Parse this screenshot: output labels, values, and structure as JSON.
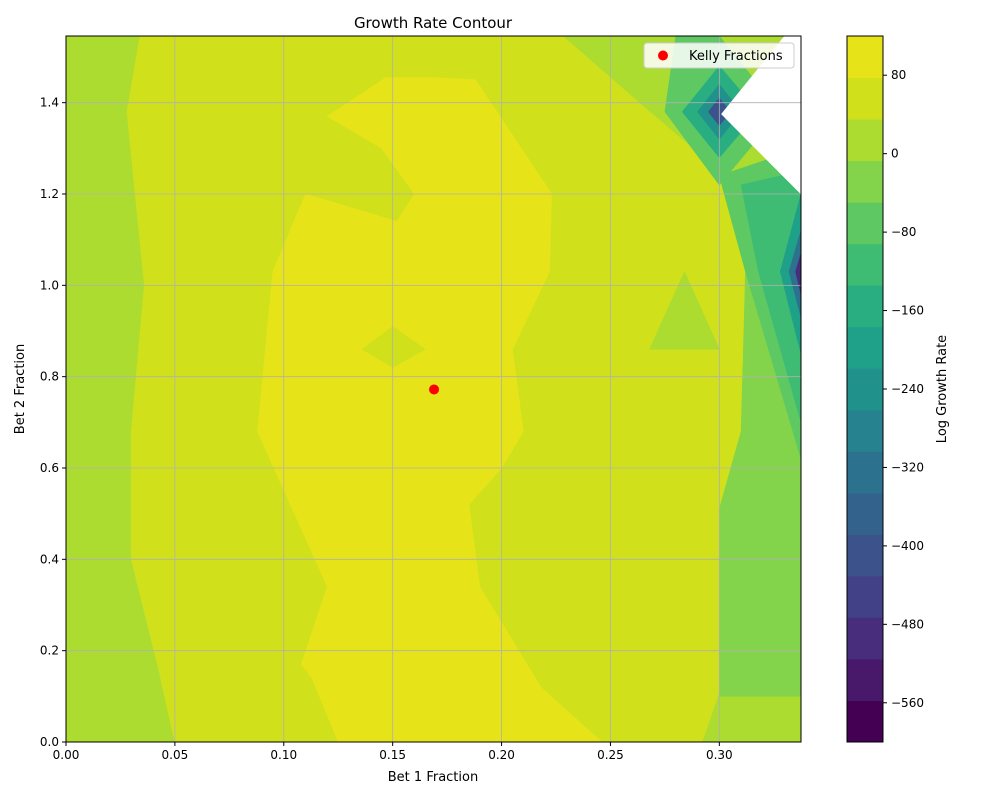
{
  "chart_data": {
    "type": "contour",
    "title": "Growth Rate Contour",
    "xlabel": "Bet 1 Fraction",
    "ylabel": "Bet 2 Fraction",
    "xlim": [
      0,
      0.3375
    ],
    "ylim": [
      0,
      1.546
    ],
    "x_ticks": [
      0.0,
      0.05,
      0.1,
      0.15,
      0.2,
      0.25,
      0.3
    ],
    "x_tick_labels": [
      "0.00",
      "0.05",
      "0.10",
      "0.15",
      "0.20",
      "0.25",
      "0.30"
    ],
    "y_ticks": [
      0.0,
      0.2,
      0.4,
      0.6,
      0.8,
      1.0,
      1.2,
      1.4
    ],
    "y_tick_labels": [
      "0.0",
      "0.2",
      "0.4",
      "0.6",
      "0.8",
      "1.0",
      "1.2",
      "1.4"
    ],
    "grid": true,
    "legend": {
      "position": "top-right",
      "entries": [
        {
          "label": "Kelly Fractions",
          "color": "#ff0000",
          "marker": "circle"
        }
      ]
    },
    "kelly_point": {
      "x": 0.169,
      "y": 0.772
    },
    "colorbar": {
      "label": "Log Growth Rate",
      "min": -600,
      "max": 120,
      "tick_values": [
        80,
        0,
        -80,
        -160,
        -240,
        -320,
        -400,
        -480,
        -560
      ],
      "tick_labels": [
        "80",
        "0",
        "−80",
        "−160",
        "−240",
        "−320",
        "−400",
        "−480",
        "−560"
      ],
      "level_colors": [
        "#440154",
        "#48186a",
        "#472d7b",
        "#424086",
        "#3b528b",
        "#33638d",
        "#2c728e",
        "#26828e",
        "#21918c",
        "#1fa088",
        "#28ae80",
        "#3fbc73",
        "#5ec962",
        "#84d44b",
        "#addc30",
        "#d0e11c",
        "#e6e419"
      ]
    },
    "regions": [
      {
        "level_color": "#addc30",
        "points": [
          [
            0,
            0
          ],
          [
            0.3375,
            0
          ],
          [
            0.3375,
            1.546
          ],
          [
            0,
            1.546
          ]
        ]
      },
      {
        "level_color": "#d0e11c",
        "points": [
          [
            0.05,
            0
          ],
          [
            0.292,
            0
          ],
          [
            0.3,
            0.11
          ],
          [
            0.3375,
            0.24
          ],
          [
            0.3375,
            1.2
          ],
          [
            0.3,
            1.25
          ],
          [
            0.268,
            1.38
          ],
          [
            0.228,
            1.546
          ],
          [
            0.034,
            1.546
          ],
          [
            0.028,
            1.38
          ],
          [
            0.036,
            1.0
          ],
          [
            0.03,
            0.68
          ],
          [
            0.03,
            0.4
          ],
          [
            0.042,
            0.17
          ]
        ]
      },
      {
        "level_color": "#e6e419",
        "points": [
          [
            0.108,
            0.17
          ],
          [
            0.113,
            0.14
          ],
          [
            0.125,
            0
          ],
          [
            0.246,
            0
          ],
          [
            0.218,
            0.12
          ],
          [
            0.19,
            0.34
          ],
          [
            0.185,
            0.52
          ],
          [
            0.2,
            0.6
          ],
          [
            0.21,
            0.68
          ],
          [
            0.205,
            0.86
          ],
          [
            0.222,
            1.03
          ],
          [
            0.223,
            1.2
          ],
          [
            0.188,
            1.45
          ],
          [
            0.168,
            1.455
          ],
          [
            0.147,
            1.455
          ],
          [
            0.12,
            1.37
          ],
          [
            0.145,
            1.3
          ],
          [
            0.16,
            1.2
          ],
          [
            0.152,
            1.14
          ],
          [
            0.11,
            1.2
          ],
          [
            0.095,
            1.03
          ],
          [
            0.088,
            0.68
          ],
          [
            0.12,
            0.34
          ]
        ]
      },
      {
        "level_color": "#d0e11c",
        "points": [
          [
            0.136,
            0.86
          ],
          [
            0.15,
            0.82
          ],
          [
            0.165,
            0.86
          ],
          [
            0.15,
            0.91
          ]
        ]
      },
      {
        "level_color": "#addc30",
        "points": [
          [
            0.268,
            0.86
          ],
          [
            0.284,
            1.03
          ],
          [
            0.3,
            0.86
          ]
        ]
      },
      {
        "level_color": "#84d44b",
        "points": [
          [
            0.3,
            0.1
          ],
          [
            0.3375,
            0.1
          ],
          [
            0.3375,
            1.2
          ],
          [
            0.312,
            1.03
          ],
          [
            0.31,
            0.68
          ],
          [
            0.3,
            0.51
          ]
        ]
      },
      {
        "level_color": "#5ec962",
        "points": [
          [
            0.312,
            1.03
          ],
          [
            0.3375,
            0.62
          ],
          [
            0.3375,
            1.3
          ],
          [
            0.3,
            1.24
          ]
        ]
      },
      {
        "level_color": "#3fbc73",
        "points": [
          [
            0.318,
            1.03
          ],
          [
            0.3375,
            0.7
          ],
          [
            0.3375,
            1.25
          ],
          [
            0.31,
            1.22
          ]
        ]
      },
      {
        "level_color": "#1fa088",
        "points": [
          [
            0.328,
            1.03
          ],
          [
            0.3375,
            0.85
          ],
          [
            0.3375,
            1.2
          ]
        ]
      },
      {
        "level_color": "#2c728e",
        "points": [
          [
            0.332,
            1.03
          ],
          [
            0.3375,
            0.93
          ],
          [
            0.3375,
            1.12
          ]
        ]
      },
      {
        "level_color": "#472d7b",
        "points": [
          [
            0.335,
            1.03
          ],
          [
            0.3375,
            0.98
          ],
          [
            0.3375,
            1.07
          ]
        ]
      },
      {
        "level_color": "#5ec962",
        "points": [
          [
            0.275,
            1.38
          ],
          [
            0.3,
            1.22
          ],
          [
            0.328,
            1.38
          ],
          [
            0.3,
            1.546
          ],
          [
            0.28,
            1.546
          ]
        ]
      },
      {
        "level_color": "#28ae80",
        "points": [
          [
            0.283,
            1.38
          ],
          [
            0.3,
            1.28
          ],
          [
            0.318,
            1.38
          ],
          [
            0.3,
            1.48
          ]
        ]
      },
      {
        "level_color": "#21918c",
        "points": [
          [
            0.29,
            1.38
          ],
          [
            0.3,
            1.32
          ],
          [
            0.31,
            1.38
          ],
          [
            0.3,
            1.44
          ]
        ]
      },
      {
        "level_color": "#3b528b",
        "points": [
          [
            0.295,
            1.38
          ],
          [
            0.3,
            1.35
          ],
          [
            0.305,
            1.38
          ],
          [
            0.3,
            1.41
          ]
        ]
      },
      {
        "level_color": "#ffffff",
        "points": [
          [
            0.301,
            1.375
          ],
          [
            0.3375,
            1.2
          ],
          [
            0.3375,
            1.546
          ],
          [
            0.33,
            1.546
          ]
        ]
      }
    ]
  }
}
